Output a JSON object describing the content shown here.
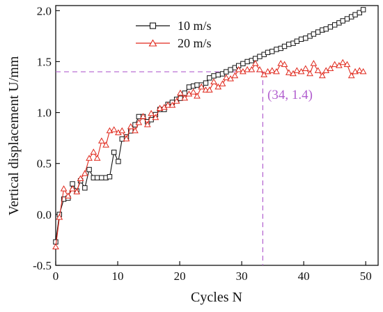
{
  "chart_data": {
    "type": "line",
    "xlabel": "Cycles N",
    "ylabel": "Vertical displacement U/mm",
    "xlim": [
      0,
      52
    ],
    "ylim": [
      -0.5,
      2.05
    ],
    "xticks": [
      "0",
      "10",
      "20",
      "30",
      "40",
      "50"
    ],
    "yticks": [
      "-0.5",
      "0.0",
      "0.5",
      "1.0",
      "1.5",
      "2.0"
    ],
    "grid": false,
    "legend_position": "top-center",
    "series": [
      {
        "name": "10 m/s",
        "color": "#111111",
        "marker": "square",
        "x": [
          0,
          0.6,
          1.3,
          2.0,
          2.7,
          3.4,
          4.0,
          4.7,
          5.4,
          6.1,
          6.7,
          7.4,
          8.1,
          8.7,
          9.4,
          10.1,
          10.7,
          11.4,
          12.1,
          12.8,
          13.4,
          14.1,
          14.8,
          15.4,
          16.1,
          16.8,
          17.5,
          18.1,
          18.8,
          19.5,
          20.1,
          20.8,
          21.5,
          22.2,
          22.8,
          23.5,
          24.2,
          24.8,
          25.5,
          26.2,
          26.9,
          27.5,
          28.2,
          28.9,
          29.5,
          30.2,
          30.9,
          31.6,
          32.2,
          32.9,
          33.6,
          34.2,
          34.9,
          35.6,
          36.3,
          36.9,
          37.6,
          38.3,
          38.9,
          39.6,
          40.3,
          41.0,
          41.6,
          42.3,
          43.0,
          43.6,
          44.3,
          45.0,
          45.7,
          46.3,
          47.0,
          47.7,
          48.3,
          49.0,
          49.6
        ],
        "y": [
          -0.27,
          0.0,
          0.15,
          0.16,
          0.3,
          0.23,
          0.33,
          0.26,
          0.44,
          0.36,
          0.36,
          0.36,
          0.36,
          0.37,
          0.61,
          0.52,
          0.74,
          0.76,
          0.82,
          0.88,
          0.96,
          0.96,
          0.91,
          0.93,
          0.98,
          1.03,
          1.03,
          1.08,
          1.1,
          1.13,
          1.14,
          1.19,
          1.25,
          1.26,
          1.27,
          1.27,
          1.29,
          1.34,
          1.36,
          1.37,
          1.38,
          1.4,
          1.42,
          1.44,
          1.46,
          1.48,
          1.5,
          1.51,
          1.53,
          1.55,
          1.57,
          1.59,
          1.6,
          1.62,
          1.63,
          1.65,
          1.67,
          1.68,
          1.7,
          1.72,
          1.73,
          1.75,
          1.77,
          1.79,
          1.81,
          1.82,
          1.84,
          1.86,
          1.88,
          1.9,
          1.92,
          1.94,
          1.96,
          1.98,
          2.01
        ]
      },
      {
        "name": "20 m/s",
        "color": "#e0281c",
        "marker": "triangle",
        "x": [
          0,
          0.6,
          1.3,
          2.0,
          2.7,
          3.4,
          4.0,
          4.7,
          5.4,
          6.1,
          6.7,
          7.4,
          8.1,
          8.7,
          9.4,
          10.1,
          10.7,
          11.4,
          12.1,
          12.8,
          13.4,
          14.1,
          14.8,
          15.4,
          16.1,
          16.8,
          17.5,
          18.1,
          18.8,
          19.5,
          20.1,
          20.8,
          21.5,
          22.2,
          22.8,
          23.5,
          24.2,
          24.8,
          25.5,
          26.2,
          26.9,
          27.5,
          28.2,
          28.9,
          29.5,
          30.2,
          30.9,
          31.6,
          32.2,
          32.9,
          33.6,
          34.2,
          34.9,
          35.6,
          36.3,
          36.9,
          37.6,
          38.3,
          38.9,
          39.6,
          40.3,
          41.0,
          41.6,
          42.3,
          43.0,
          43.6,
          44.3,
          45.0,
          45.7,
          46.3,
          47.0,
          47.7,
          48.3,
          49.0,
          49.6
        ],
        "y": [
          -0.32,
          -0.03,
          0.25,
          0.18,
          0.25,
          0.22,
          0.35,
          0.4,
          0.55,
          0.61,
          0.55,
          0.72,
          0.68,
          0.82,
          0.83,
          0.8,
          0.82,
          0.74,
          0.86,
          0.82,
          0.9,
          0.96,
          0.88,
          0.99,
          0.95,
          1.04,
          1.05,
          1.07,
          1.07,
          1.11,
          1.19,
          1.14,
          1.18,
          1.2,
          1.16,
          1.25,
          1.22,
          1.22,
          1.3,
          1.25,
          1.28,
          1.34,
          1.33,
          1.36,
          1.42,
          1.4,
          1.42,
          1.42,
          1.48,
          1.42,
          1.37,
          1.4,
          1.41,
          1.4,
          1.48,
          1.47,
          1.39,
          1.38,
          1.41,
          1.4,
          1.43,
          1.38,
          1.48,
          1.41,
          1.36,
          1.41,
          1.43,
          1.47,
          1.46,
          1.49,
          1.47,
          1.36,
          1.4,
          1.41,
          1.4
        ]
      }
    ],
    "annotation": {
      "text": "(34, 1.4)",
      "x": 33.4,
      "y": 1.4,
      "color": "#b25fcf"
    }
  }
}
